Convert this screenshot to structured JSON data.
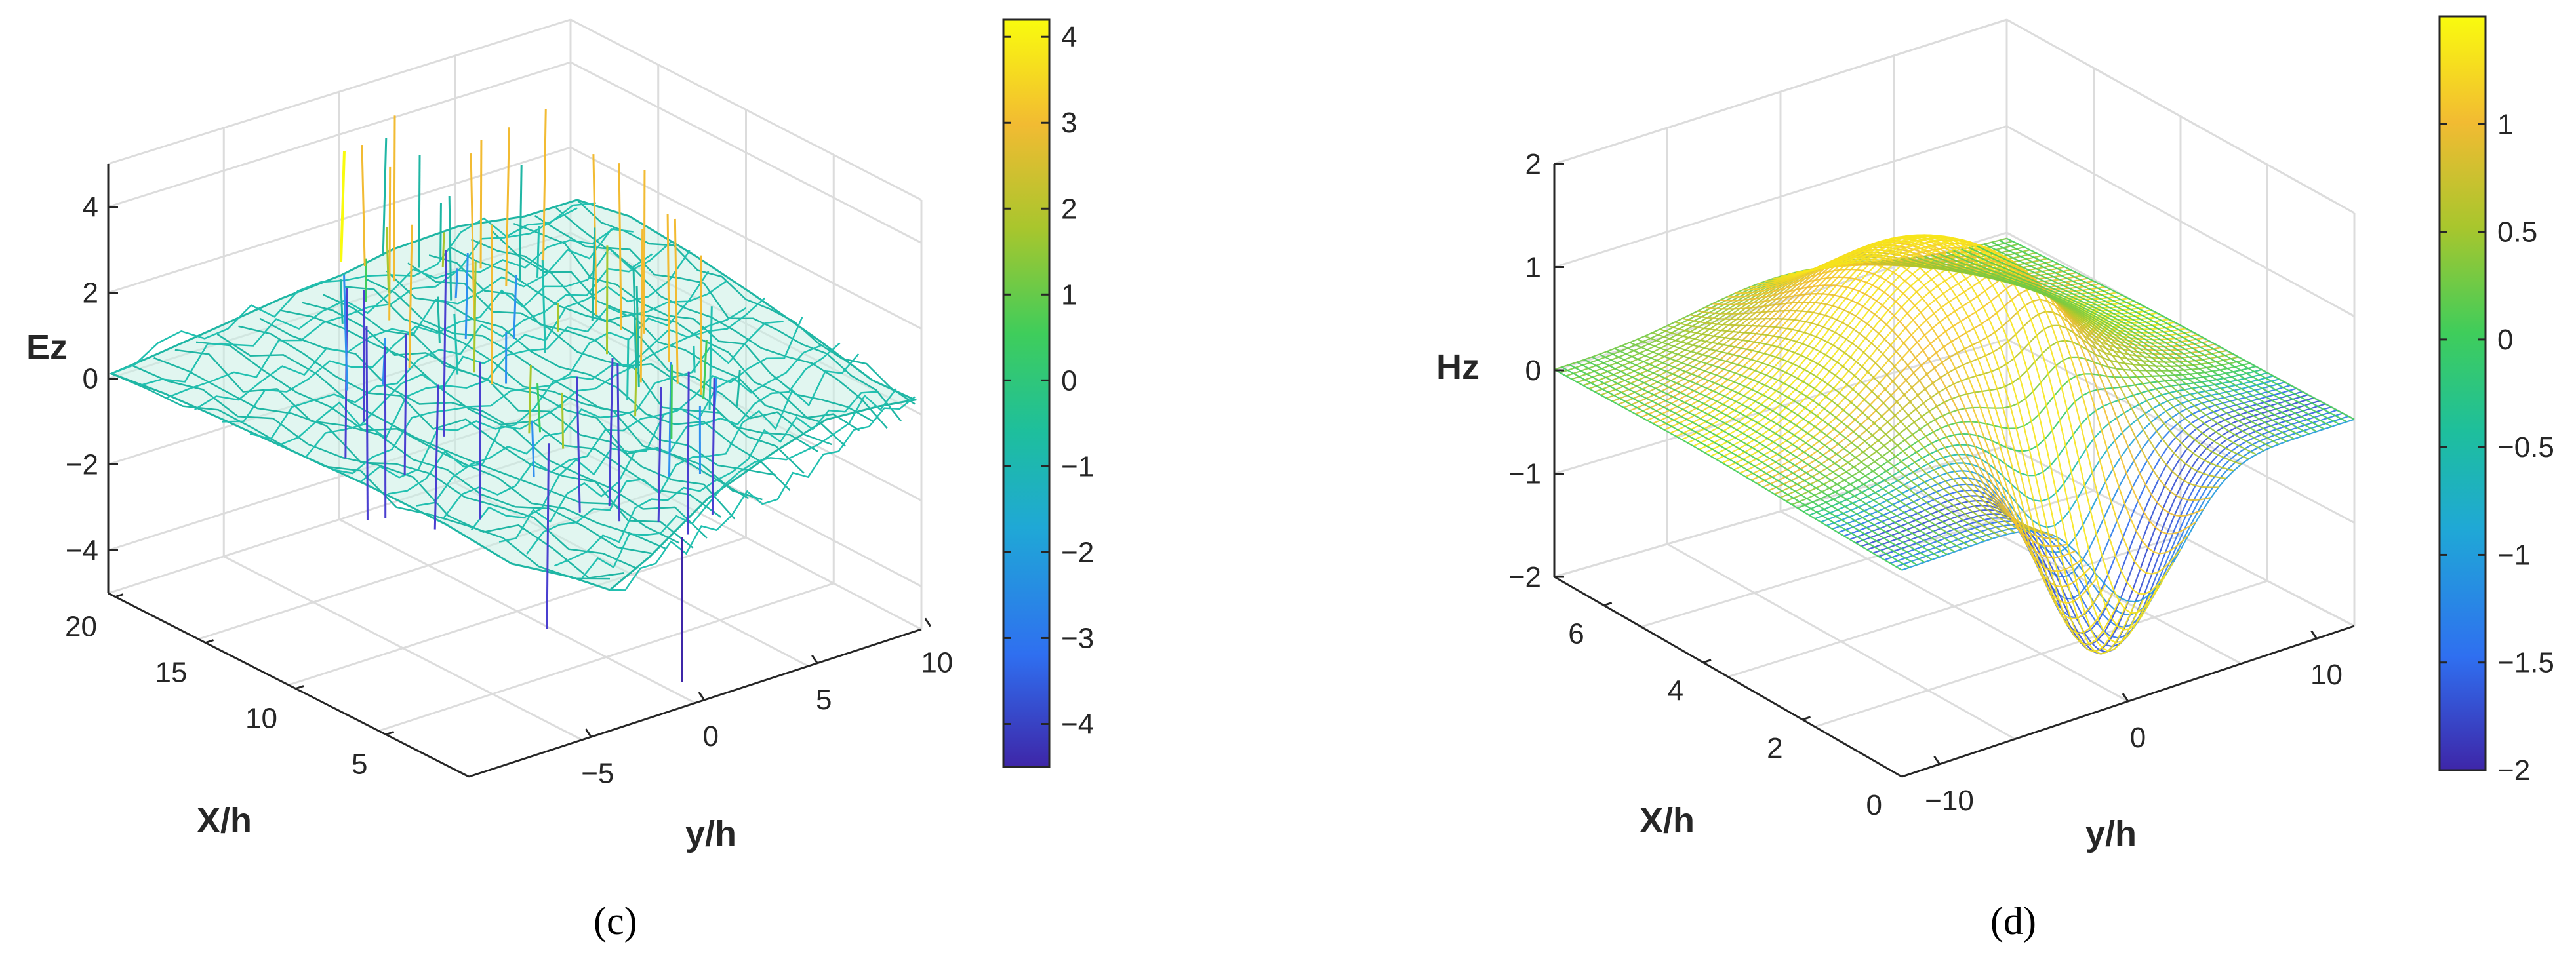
{
  "chart_data": [
    {
      "type": "surface",
      "panel_label": "(c)",
      "zlabel": "Ez",
      "xlabel": "X/h",
      "ylabel": "y/h",
      "x_ticks": [
        5,
        10,
        15,
        20
      ],
      "y_ticks": [
        -5,
        0,
        5,
        10
      ],
      "z_ticks": [
        -4,
        -2,
        0,
        2,
        4
      ],
      "colorbar_ticks": [
        4,
        3,
        2,
        1,
        0,
        -1,
        -2,
        -3,
        -4
      ],
      "colorbar_range": [
        -4.5,
        4.2
      ],
      "colormap": [
        "#3e26a8",
        "#2f6ff0",
        "#1fa8d6",
        "#1ebf9c",
        "#3fcd5b",
        "#a8c62d",
        "#f2bb32",
        "#f9fb0e"
      ],
      "wire_color": "#1fb6a4"
    },
    {
      "type": "surface",
      "panel_label": "(d)",
      "zlabel": "Hz",
      "xlabel": "X/h",
      "ylabel": "y/h",
      "x_ticks": [
        0,
        2,
        4,
        6
      ],
      "y_ticks": [
        -10,
        0,
        10
      ],
      "z_ticks": [
        -2,
        -1,
        0,
        1,
        2
      ],
      "colorbar_ticks": [
        1,
        0.5,
        0,
        -0.5,
        -1,
        -1.5,
        -2
      ],
      "colorbar_range": [
        -2,
        1.5
      ],
      "colormap": [
        "#3e26a8",
        "#2f6ff0",
        "#1fa8d6",
        "#1ebf9c",
        "#3fcd5b",
        "#a8c62d",
        "#f2bb32",
        "#f9fb0e"
      ],
      "wire_color": "#2cc48a"
    }
  ]
}
